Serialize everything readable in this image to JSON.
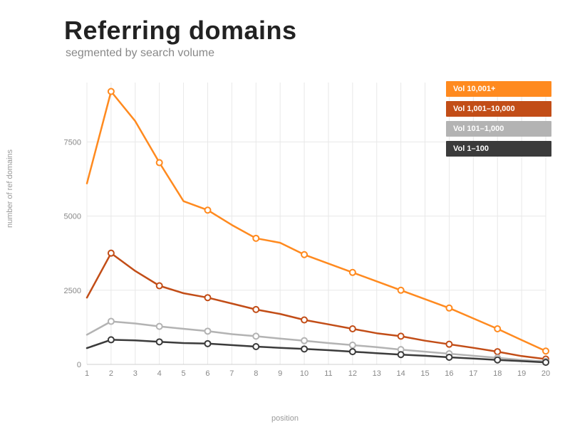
{
  "chart": {
    "type": "line",
    "title": "Referring domains",
    "subtitle": "segmented by search volume",
    "xlabel": "position",
    "ylabel": "number of ref domains",
    "x": [
      1,
      2,
      3,
      4,
      5,
      6,
      7,
      8,
      9,
      10,
      11,
      12,
      13,
      14,
      15,
      16,
      17,
      18,
      19,
      20
    ],
    "xlim": [
      1,
      20
    ],
    "ylim": [
      0,
      9500
    ],
    "ytick_step": 2500,
    "xtick_step": 1,
    "background_color": "#ffffff",
    "grid_color": "#e8e8e8",
    "axis_tick_color": "#888888",
    "line_width": 2.5,
    "marker": "circle",
    "marker_radius": 4,
    "marker_fill": "#ffffff",
    "marker_stroke_width": 2,
    "marker_positions": [
      2,
      4,
      6,
      8,
      10,
      12,
      14,
      16,
      18,
      20
    ],
    "title_fontsize": 36,
    "title_fontweight": 800,
    "title_color": "#222222",
    "subtitle_fontsize": 16,
    "subtitle_color": "#888888",
    "label_fontsize": 11,
    "label_color": "#9a9a9a",
    "tick_fontsize": 11,
    "series": [
      {
        "name": "vol-10001-plus",
        "label": "Vol 10,001+",
        "color": "#ff8a1f",
        "values": [
          6100,
          9200,
          8200,
          6800,
          5500,
          5200,
          4700,
          4250,
          4100,
          3700,
          3400,
          3100,
          2800,
          2500,
          2200,
          1900,
          1550,
          1200,
          820,
          450
        ]
      },
      {
        "name": "vol-1001-10000",
        "label": "Vol 1,001–10,000",
        "color": "#c24d17",
        "values": [
          2250,
          3750,
          3150,
          2650,
          2400,
          2250,
          2050,
          1850,
          1700,
          1500,
          1350,
          1200,
          1050,
          950,
          800,
          680,
          560,
          430,
          280,
          180
        ]
      },
      {
        "name": "vol-101-1000",
        "label": "Vol 101–1,000",
        "color": "#b3b3b3",
        "values": [
          1000,
          1450,
          1380,
          1280,
          1200,
          1120,
          1020,
          950,
          870,
          800,
          720,
          650,
          580,
          500,
          430,
          360,
          290,
          220,
          150,
          100
        ]
      },
      {
        "name": "vol-1-100",
        "label": "Vol 1–100",
        "color": "#3b3b3b",
        "values": [
          550,
          830,
          810,
          760,
          720,
          700,
          650,
          600,
          560,
          520,
          480,
          430,
          380,
          330,
          290,
          240,
          200,
          150,
          110,
          70
        ]
      }
    ],
    "legend": {
      "position": "top-right",
      "item_height": 22,
      "item_gap": 6,
      "fontsize": 11,
      "text_color": "#ffffff"
    }
  }
}
